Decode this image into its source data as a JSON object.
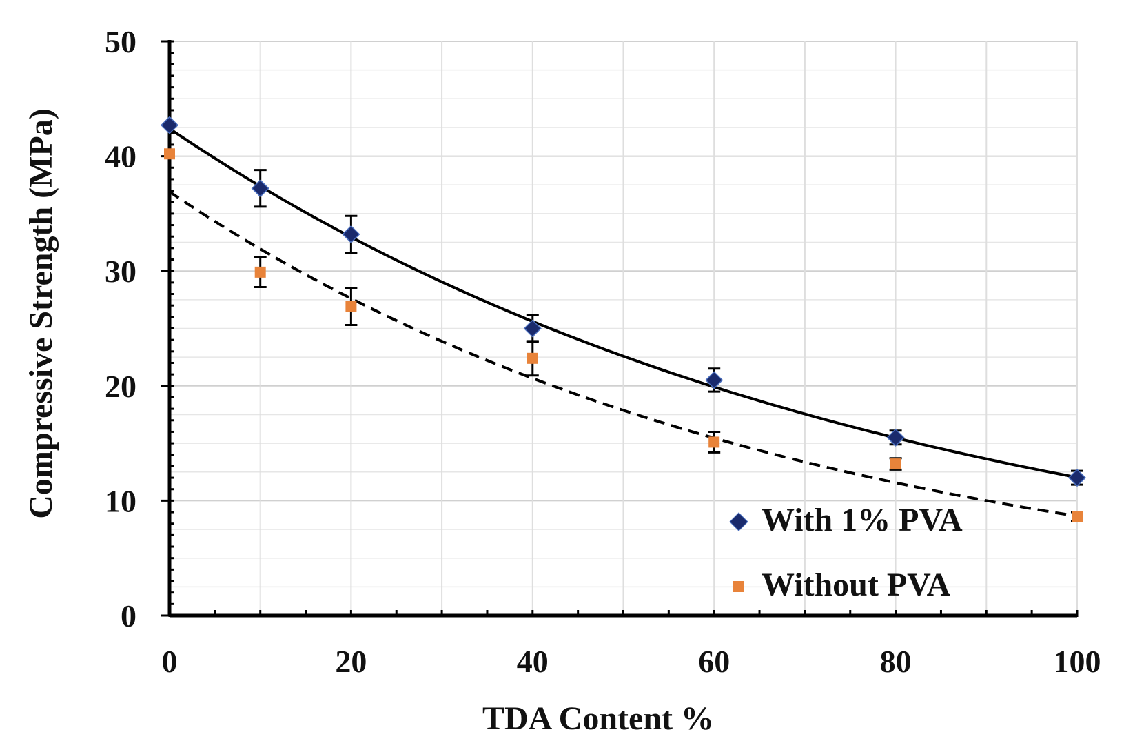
{
  "chart_data": {
    "type": "scatter",
    "title": "",
    "xlabel": "TDA Content %",
    "ylabel": "Compressive Strength (MPa)",
    "xlim": [
      0,
      100
    ],
    "ylim": [
      0,
      50
    ],
    "x_ticks": [
      0,
      20,
      40,
      60,
      80,
      100
    ],
    "y_ticks": [
      0,
      10,
      20,
      30,
      40,
      50
    ],
    "grid": true,
    "legend_position": "bottom-right",
    "series": [
      {
        "name": "With 1% PVA",
        "marker": "diamond",
        "color": "#1a2a6c",
        "x": [
          0,
          10,
          20,
          40,
          60,
          80,
          100
        ],
        "y": [
          42.7,
          37.2,
          33.2,
          25.0,
          20.5,
          15.5,
          12.0
        ],
        "error": [
          0,
          1.6,
          1.6,
          1.2,
          1.0,
          0.6,
          0.6
        ],
        "trendline": {
          "style": "solid",
          "color": "#000000",
          "y0": 42.4,
          "k": 0.0126
        }
      },
      {
        "name": "Without PVA",
        "marker": "square",
        "color": "#e8833a",
        "x": [
          0,
          10,
          20,
          40,
          60,
          80,
          100
        ],
        "y": [
          40.2,
          29.9,
          26.9,
          22.4,
          15.1,
          13.2,
          8.6
        ],
        "error": [
          0,
          1.3,
          1.6,
          1.5,
          0.9,
          0.5,
          0.4
        ],
        "trendline": {
          "style": "dashed",
          "color": "#000000",
          "y0": 36.9,
          "k": 0.0145
        }
      }
    ]
  }
}
